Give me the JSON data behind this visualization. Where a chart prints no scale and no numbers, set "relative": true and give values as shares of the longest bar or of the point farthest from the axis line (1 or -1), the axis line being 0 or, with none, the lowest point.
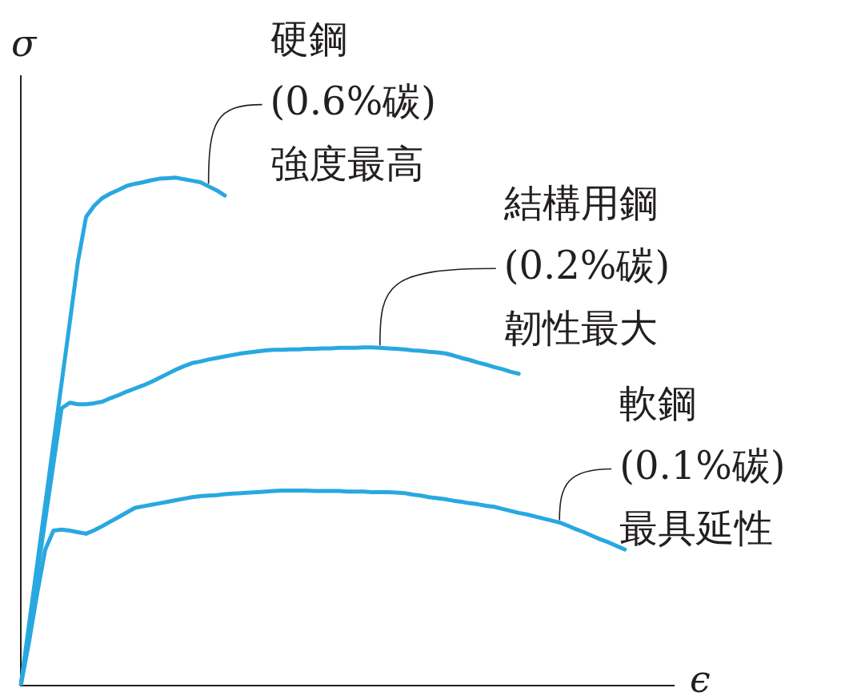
{
  "chart_data": {
    "type": "line",
    "relative": true,
    "xlabel": "ϵ",
    "ylabel": "σ",
    "tick_labels": false,
    "grid": false,
    "legend": false,
    "marker": "none",
    "line_style": "solid",
    "categories": [
      null,
      null,
      null,
      null,
      null,
      null,
      null,
      null,
      null,
      null,
      null,
      null,
      null,
      null,
      null,
      null,
      null,
      null,
      null,
      null,
      null,
      null,
      null,
      null,
      null,
      null,
      null,
      null,
      null,
      null,
      null,
      null,
      null,
      null,
      null,
      null,
      null,
      null,
      null,
      null,
      null,
      null,
      null,
      null,
      null,
      null,
      null,
      null,
      null,
      null,
      null,
      null,
      null,
      null,
      null,
      null,
      null,
      null,
      null,
      null,
      null,
      null,
      null,
      null,
      null,
      null,
      null,
      null,
      null,
      null,
      null,
      null,
      null,
      null,
      null,
      null,
      null,
      null,
      null,
      null,
      null
    ],
    "series": [
      {
        "color": "#29a8e0",
        "values": [
          0,
          0.119,
          0.238,
          0.358,
          0.477,
          0.596,
          0.715,
          0.835,
          0.923,
          0.945,
          0.96,
          0.969,
          0.976,
          0.984,
          0.988,
          0.991,
          0.995,
          0.998,
          0.999,
          1.0,
          0.997,
          0.994,
          0.991,
          0.983,
          0.975,
          0.965,
          null,
          null,
          null,
          null,
          null,
          null,
          null,
          null,
          null,
          null,
          null,
          null,
          null,
          null,
          null,
          null,
          null,
          null,
          null,
          null,
          null,
          null,
          null,
          null,
          null,
          null,
          null,
          null,
          null,
          null,
          null,
          null,
          null,
          null,
          null,
          null,
          null,
          null,
          null,
          null,
          null,
          null,
          null,
          null,
          null,
          null,
          null,
          null,
          null,
          null,
          null,
          null,
          null,
          null,
          null
        ]
      },
      {
        "color": "#29a8e0",
        "values": [
          0,
          0.109,
          0.218,
          0.327,
          0.437,
          0.546,
          0.557,
          0.554,
          0.554,
          0.556,
          0.559,
          0.566,
          0.572,
          0.579,
          0.585,
          0.591,
          0.598,
          0.606,
          0.614,
          0.622,
          0.629,
          0.635,
          0.638,
          0.642,
          0.645,
          0.648,
          0.651,
          0.654,
          0.656,
          0.658,
          0.66,
          0.661,
          0.661,
          0.662,
          0.662,
          0.663,
          0.663,
          0.664,
          0.664,
          0.665,
          0.665,
          0.665,
          0.666,
          0.666,
          0.665,
          0.664,
          0.663,
          0.662,
          0.66,
          0.659,
          0.657,
          0.656,
          0.654,
          0.65,
          0.645,
          0.641,
          0.636,
          0.632,
          0.627,
          0.623,
          0.618,
          0.614,
          null,
          null,
          null,
          null,
          null,
          null,
          null,
          null,
          null,
          null,
          null,
          null,
          null,
          null,
          null,
          null,
          null,
          null,
          null
        ]
      },
      {
        "color": "#29a8e0",
        "values": [
          0,
          0.085,
          0.181,
          0.268,
          0.305,
          0.307,
          0.305,
          0.302,
          0.299,
          0.306,
          0.314,
          0.323,
          0.332,
          0.341,
          0.35,
          0.353,
          0.356,
          0.359,
          0.362,
          0.365,
          0.368,
          0.371,
          0.373,
          0.374,
          0.375,
          0.377,
          0.378,
          0.379,
          0.38,
          0.381,
          0.382,
          0.383,
          0.384,
          0.384,
          0.384,
          0.384,
          0.383,
          0.383,
          0.383,
          0.383,
          0.382,
          0.382,
          0.382,
          0.381,
          0.381,
          0.381,
          0.38,
          0.379,
          0.376,
          0.374,
          0.371,
          0.369,
          0.367,
          0.364,
          0.362,
          0.359,
          0.357,
          0.354,
          0.352,
          0.348,
          0.344,
          0.34,
          0.337,
          0.333,
          0.329,
          0.325,
          0.321,
          0.315,
          0.308,
          0.302,
          0.295,
          0.288,
          0.282,
          0.275,
          0.268,
          null,
          null,
          null,
          null,
          null,
          null
        ]
      }
    ],
    "annotations": [
      "硬鋼\n(0.6%碳)\n強度最高",
      "結構用鋼\n(0.2%碳)\n韌性最大",
      "軟鋼\n(0.1%碳)\n最具延性"
    ]
  }
}
